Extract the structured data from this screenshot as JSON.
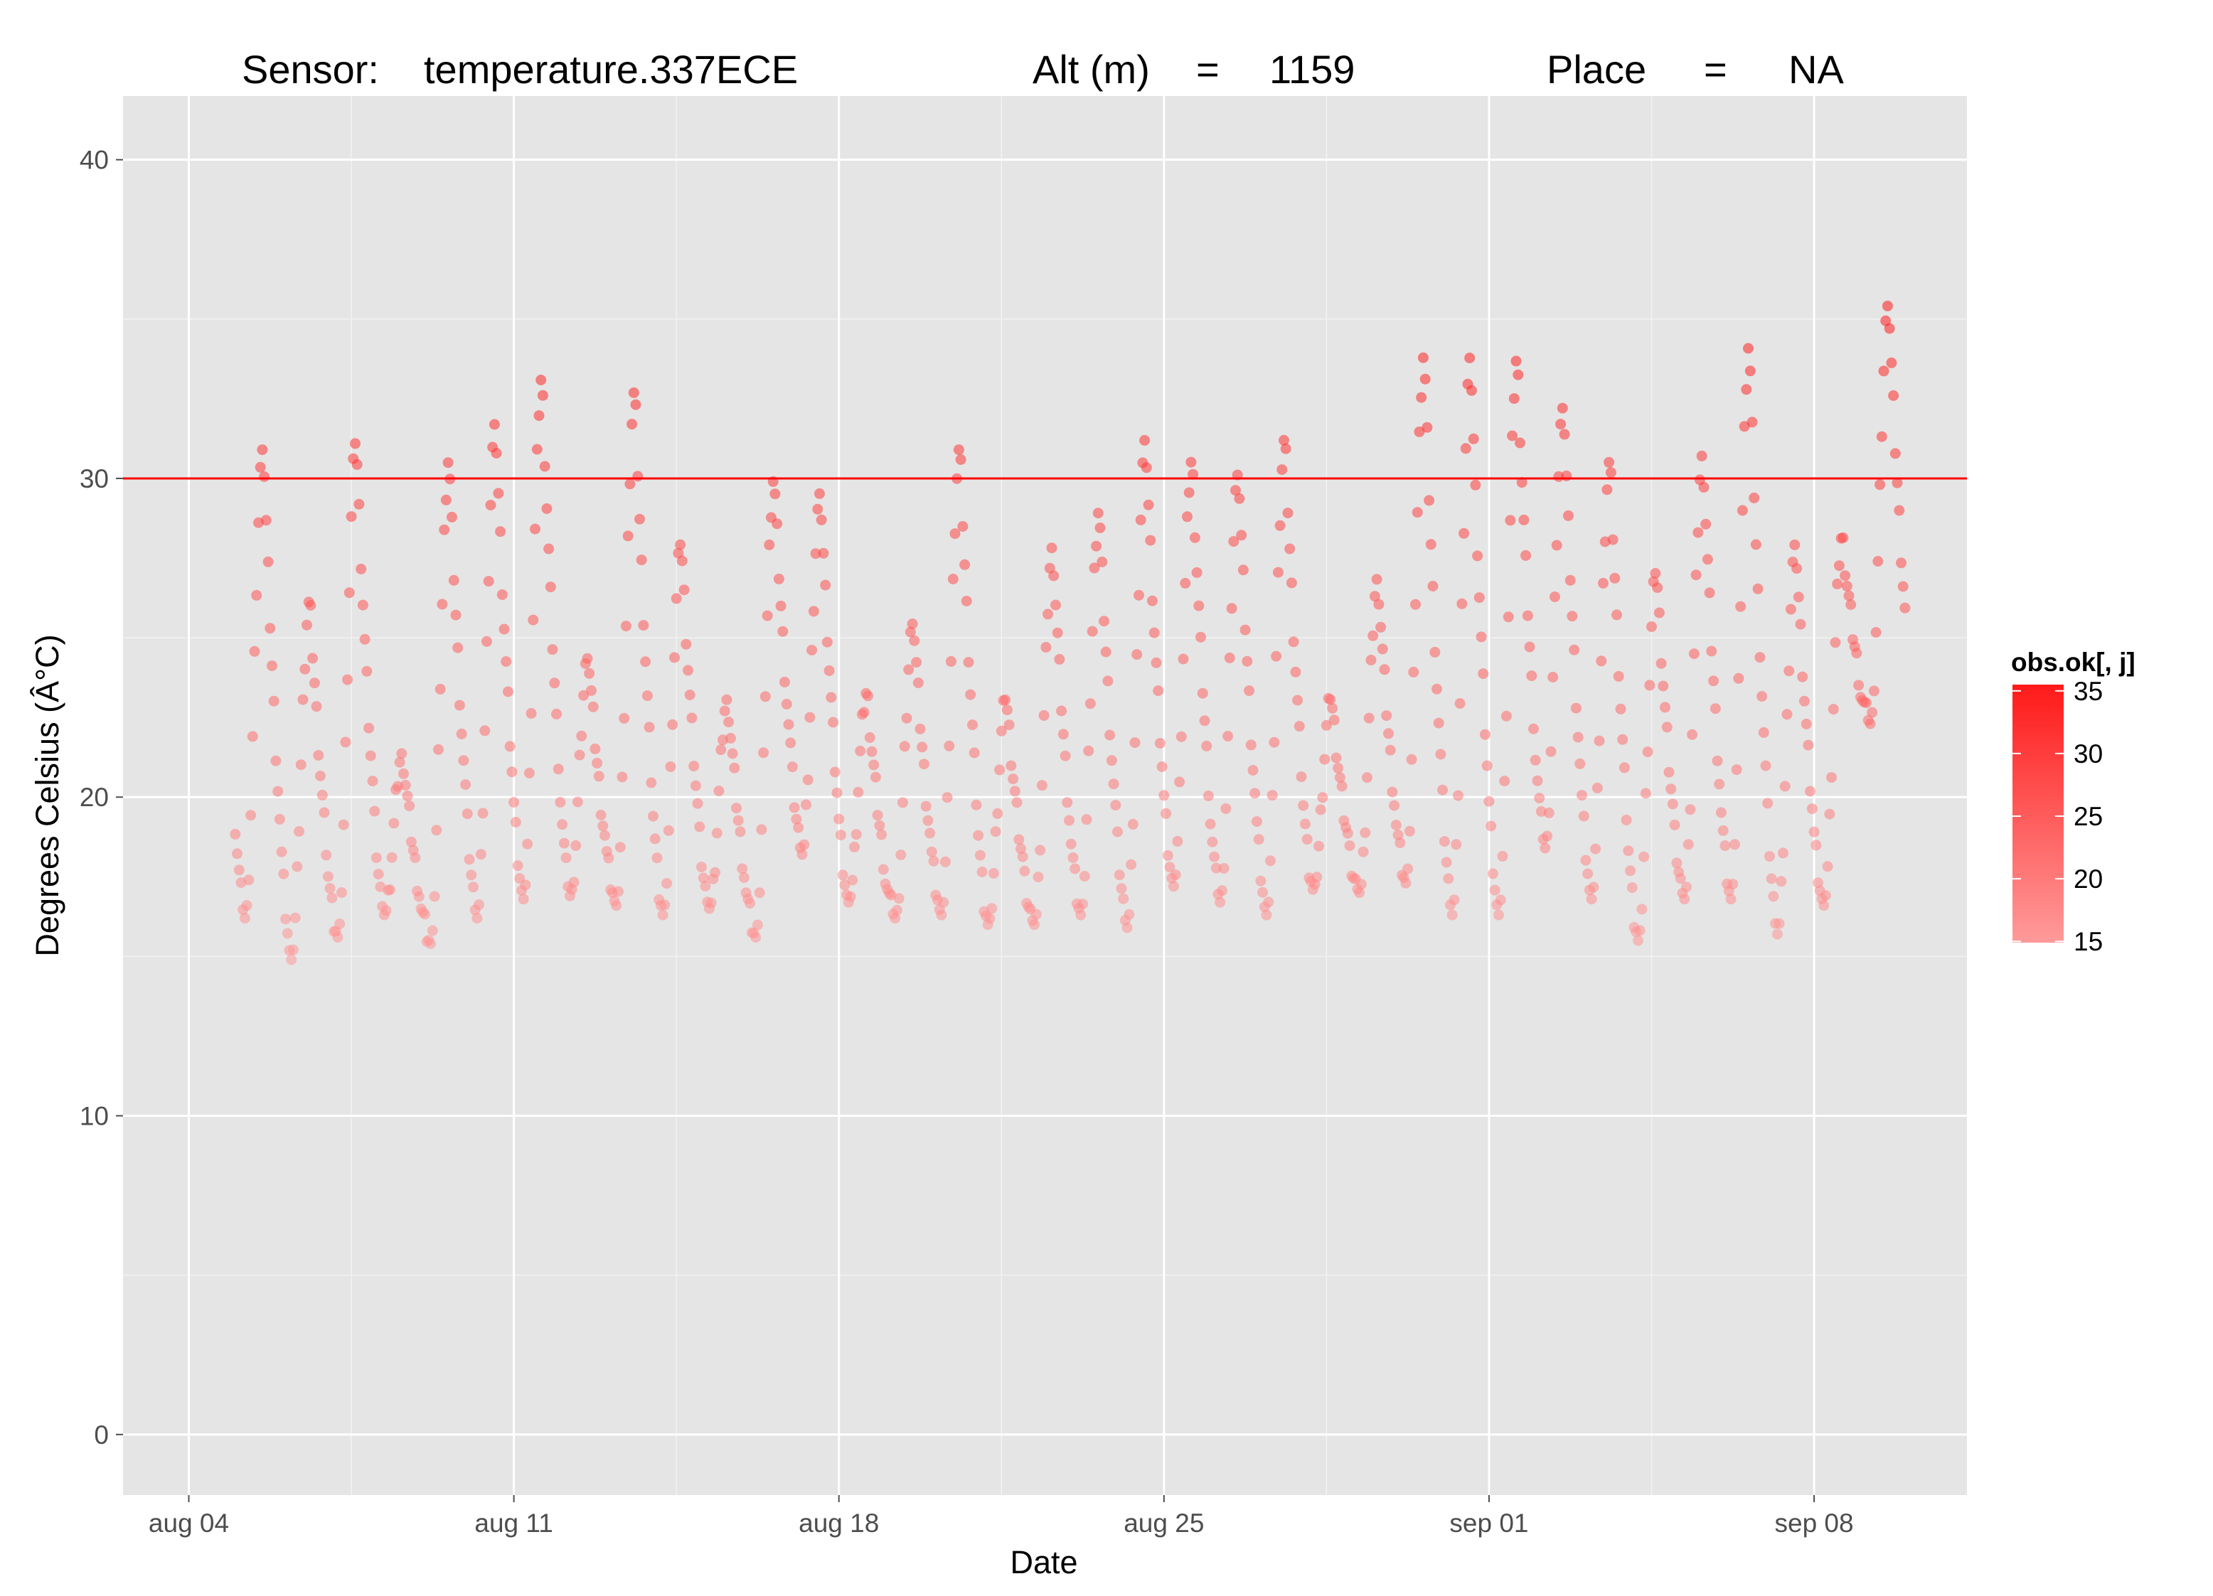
{
  "title": {
    "sensor_label": "Sensor:",
    "sensor_value": "temperature.337ECE",
    "alt_label": "Alt (m)",
    "alt_eq": "=",
    "alt_value": "1159",
    "place_label": "Place",
    "place_eq": "=",
    "place_value": "NA"
  },
  "chart_data": {
    "type": "scatter",
    "xlabel": "Date",
    "ylabel": "Degrees Celsius (Â°C)",
    "x_ticks": [
      {
        "label": "aug 04",
        "date": "2014-08-04"
      },
      {
        "label": "aug 11",
        "date": "2014-08-11"
      },
      {
        "label": "aug 18",
        "date": "2014-08-18"
      },
      {
        "label": "aug 25",
        "date": "2014-08-25"
      },
      {
        "label": "sep 01",
        "date": "2014-09-01"
      },
      {
        "label": "sep 08",
        "date": "2014-09-08"
      }
    ],
    "xlim": [
      "2014-08-02 14:00",
      "2014-09-11 07:00"
    ],
    "y_ticks": [
      0,
      10,
      20,
      30,
      40
    ],
    "ylim": [
      -1.9,
      42.0
    ],
    "grid": true,
    "threshold_line": {
      "y": 30,
      "color": "#ff0000"
    },
    "color_scale": {
      "title": "obs.ok[, j]",
      "ticks": [
        15,
        20,
        25,
        30,
        35
      ],
      "low_value": 14.9,
      "high_value": 35.5,
      "low_color": "#ff9a9a",
      "high_color": "#ff1a1a"
    },
    "daily_temperatures": [
      {
        "date": "2014-08-05",
        "min": 16.2,
        "max": 31.0
      },
      {
        "date": "2014-08-06",
        "min": 14.9,
        "max": 26.2
      },
      {
        "date": "2014-08-07",
        "min": 15.6,
        "max": 31.2
      },
      {
        "date": "2014-08-08",
        "min": 16.3,
        "max": 21.4
      },
      {
        "date": "2014-08-09",
        "min": 15.4,
        "max": 30.6
      },
      {
        "date": "2014-08-10",
        "min": 16.2,
        "max": 31.8
      },
      {
        "date": "2014-08-11",
        "min": 16.8,
        "max": 33.2
      },
      {
        "date": "2014-08-12",
        "min": 16.9,
        "max": 24.4
      },
      {
        "date": "2014-08-13",
        "min": 16.6,
        "max": 32.8
      },
      {
        "date": "2014-08-14",
        "min": 16.3,
        "max": 28.0
      },
      {
        "date": "2014-08-15",
        "min": 16.5,
        "max": 23.1
      },
      {
        "date": "2014-08-16",
        "min": 15.6,
        "max": 30.0
      },
      {
        "date": "2014-08-17",
        "min": 18.2,
        "max": 29.6
      },
      {
        "date": "2014-08-18",
        "min": 16.7,
        "max": 23.3
      },
      {
        "date": "2014-08-19",
        "min": 16.2,
        "max": 25.5
      },
      {
        "date": "2014-08-20",
        "min": 16.3,
        "max": 31.0
      },
      {
        "date": "2014-08-21",
        "min": 16.0,
        "max": 23.1
      },
      {
        "date": "2014-08-22",
        "min": 16.0,
        "max": 27.9
      },
      {
        "date": "2014-08-23",
        "min": 16.3,
        "max": 29.0
      },
      {
        "date": "2014-08-24",
        "min": 15.9,
        "max": 31.3
      },
      {
        "date": "2014-08-25",
        "min": 17.2,
        "max": 30.6
      },
      {
        "date": "2014-08-26",
        "min": 16.7,
        "max": 30.2
      },
      {
        "date": "2014-08-27",
        "min": 16.3,
        "max": 31.3
      },
      {
        "date": "2014-08-28",
        "min": 17.1,
        "max": 23.1
      },
      {
        "date": "2014-08-29",
        "min": 17.0,
        "max": 26.9
      },
      {
        "date": "2014-08-30",
        "min": 17.3,
        "max": 33.9
      },
      {
        "date": "2014-08-31",
        "min": 16.3,
        "max": 33.9
      },
      {
        "date": "2014-09-01",
        "min": 16.3,
        "max": 33.8
      },
      {
        "date": "2014-09-02",
        "min": 18.4,
        "max": 32.3
      },
      {
        "date": "2014-09-03",
        "min": 16.8,
        "max": 30.6
      },
      {
        "date": "2014-09-04",
        "min": 15.5,
        "max": 27.1
      },
      {
        "date": "2014-09-05",
        "min": 16.8,
        "max": 30.8
      },
      {
        "date": "2014-09-06",
        "min": 16.8,
        "max": 34.2
      },
      {
        "date": "2014-09-07",
        "min": 15.7,
        "max": 28.0
      },
      {
        "date": "2014-09-08",
        "min": 16.6,
        "max": 28.2
      },
      {
        "date": "2014-09-09",
        "min": 22.3,
        "max": 35.5
      }
    ]
  }
}
